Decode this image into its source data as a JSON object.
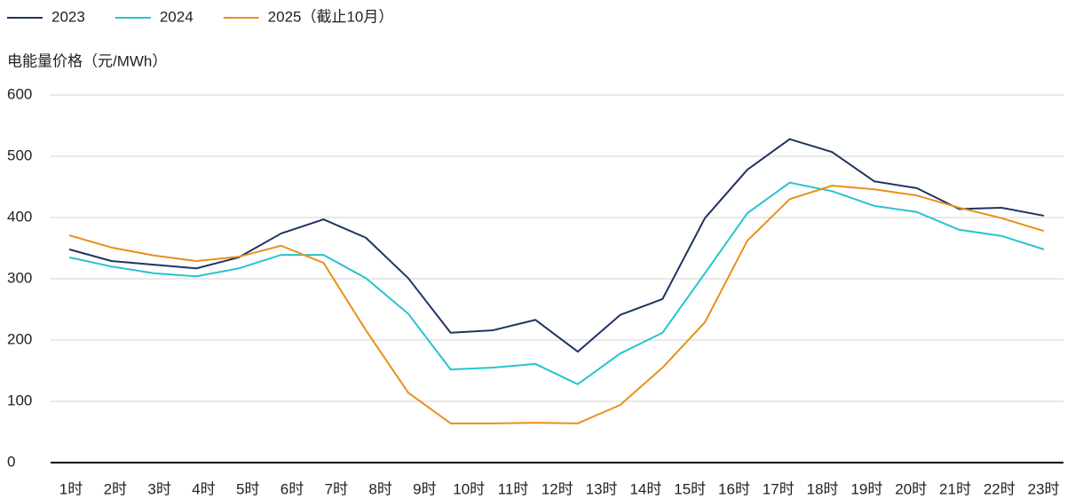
{
  "chart_data": {
    "type": "line",
    "y_label": "电能量价格（元/MWh）",
    "categories": [
      "1时",
      "2时",
      "3时",
      "4时",
      "5时",
      "6时",
      "7时",
      "8时",
      "9时",
      "10时",
      "11时",
      "12时",
      "13时",
      "14时",
      "15时",
      "16时",
      "17时",
      "18时",
      "19时",
      "20时",
      "21时",
      "22时",
      "23时",
      null
    ],
    "series": [
      {
        "name": "2023",
        "color": "#1f3460",
        "values": [
          348,
          329,
          323,
          317,
          335,
          374,
          397,
          367,
          301,
          212,
          216,
          233,
          181,
          241,
          267,
          399,
          478,
          528,
          507,
          459,
          448,
          414,
          416,
          403
        ]
      },
      {
        "name": "2024",
        "color": "#26c4cc",
        "values": [
          335,
          320,
          309,
          304,
          317,
          339,
          339,
          301,
          243,
          152,
          155,
          161,
          128,
          178,
          212,
          309,
          407,
          457,
          443,
          419,
          409,
          380,
          370,
          348
        ]
      },
      {
        "name": "2025（截止10月）",
        "color": "#e8901a",
        "values": [
          371,
          351,
          338,
          329,
          336,
          354,
          326,
          216,
          114,
          64,
          64,
          65,
          64,
          94,
          155,
          229,
          362,
          430,
          452,
          446,
          436,
          416,
          399,
          378
        ]
      }
    ],
    "ylim": [
      0,
      600
    ],
    "yticks": [
      0,
      100,
      200,
      300,
      400,
      500,
      600
    ],
    "grid": true,
    "legend": "top-left"
  }
}
